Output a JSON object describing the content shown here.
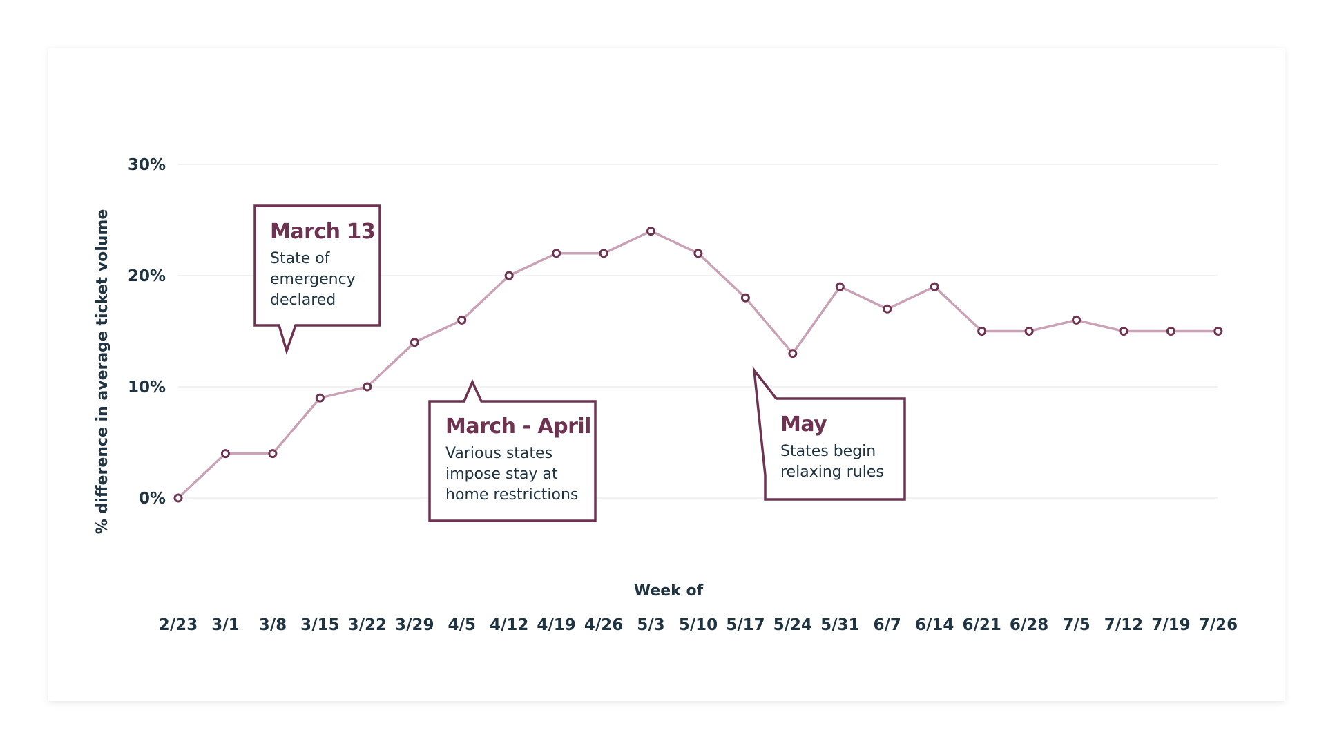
{
  "chart_data": {
    "type": "line",
    "xlabel": "Week of",
    "ylabel": "% difference in average ticket volume",
    "categories": [
      "2/23",
      "3/1",
      "3/8",
      "3/15",
      "3/22",
      "3/29",
      "4/5",
      "4/12",
      "4/19",
      "4/26",
      "5/3",
      "5/10",
      "5/17",
      "5/24",
      "5/31",
      "6/7",
      "6/14",
      "6/21",
      "6/28",
      "7/5",
      "7/12",
      "7/19",
      "7/26"
    ],
    "series": [
      {
        "values": [
          0,
          4,
          4,
          9,
          10,
          14,
          16,
          20,
          22,
          22,
          24,
          22,
          18,
          13,
          19,
          17,
          19,
          15,
          15,
          16,
          15,
          15,
          15
        ]
      }
    ],
    "ylim": [
      0,
      30
    ],
    "yticks": [
      0,
      10,
      20,
      30
    ],
    "ytick_labels": [
      "0%",
      "10%",
      "20%",
      "30%"
    ],
    "grid": true,
    "colors": {
      "line": "#c9a2b6",
      "marker": "#6d3350",
      "callout": "#6d3350",
      "grid": "#ebebeb",
      "text": "#1f3340"
    },
    "annotations": [
      {
        "title": "March 13",
        "lines": [
          "State of",
          "emergency",
          "declared"
        ],
        "anchor_category": "3/8"
      },
      {
        "title": "March - April",
        "lines": [
          "Various states",
          "impose stay at",
          "home restrictions"
        ],
        "anchor_category": "4/5"
      },
      {
        "title": "May",
        "lines": [
          "States begin",
          "relaxing rules"
        ],
        "anchor_category": "5/17"
      }
    ]
  }
}
